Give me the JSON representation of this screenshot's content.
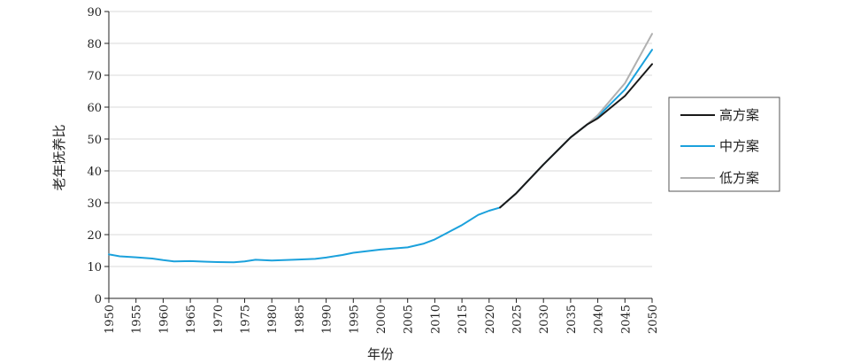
{
  "chart_data": {
    "type": "line",
    "xlabel": "年份",
    "ylabel": "老年抚养比",
    "xlim": [
      1950,
      2050
    ],
    "ylim": [
      0,
      90
    ],
    "x_ticks": [
      "1950",
      "1955",
      "1960",
      "1965",
      "1970",
      "1975",
      "1980",
      "1985",
      "1990",
      "1995",
      "2000",
      "2005",
      "2010",
      "2015",
      "2020",
      "2025",
      "2030",
      "2035",
      "2040",
      "2045",
      "2050"
    ],
    "y_ticks": [
      "0",
      "10",
      "20",
      "30",
      "40",
      "50",
      "60",
      "70",
      "80",
      "90"
    ],
    "grid": true,
    "legend_position": "right",
    "series": [
      {
        "name": "高方案",
        "color": "#1a1a1a",
        "x": [
          2022,
          2025,
          2030,
          2035,
          2038,
          2040,
          2045,
          2050
        ],
        "y": [
          28.5,
          33,
          42,
          50.5,
          54.5,
          56.5,
          63.5,
          73.5
        ]
      },
      {
        "name": "中方案",
        "color": "#1ba1dc",
        "x": [
          1950,
          1952,
          1955,
          1958,
          1960,
          1962,
          1965,
          1968,
          1970,
          1973,
          1975,
          1977,
          1980,
          1985,
          1988,
          1990,
          1993,
          1995,
          2000,
          2005,
          2008,
          2010,
          2015,
          2018,
          2020,
          2022,
          2025,
          2030,
          2035,
          2038,
          2040,
          2045,
          2050
        ],
        "y": [
          13.8,
          13.2,
          12.9,
          12.5,
          12.0,
          11.6,
          11.7,
          11.5,
          11.4,
          11.3,
          11.6,
          12.1,
          11.9,
          12.2,
          12.4,
          12.8,
          13.6,
          14.3,
          15.3,
          16.0,
          17.2,
          18.5,
          23.0,
          26.2,
          27.5,
          28.5,
          33,
          42,
          50.5,
          54.5,
          57.0,
          65.5,
          78.0
        ]
      },
      {
        "name": "低方案",
        "color": "#b0b0b0",
        "x": [
          2022,
          2025,
          2030,
          2035,
          2038,
          2040,
          2045,
          2050
        ],
        "y": [
          28.5,
          33,
          42,
          50.5,
          54.5,
          57.5,
          67.5,
          83.0
        ]
      }
    ]
  }
}
